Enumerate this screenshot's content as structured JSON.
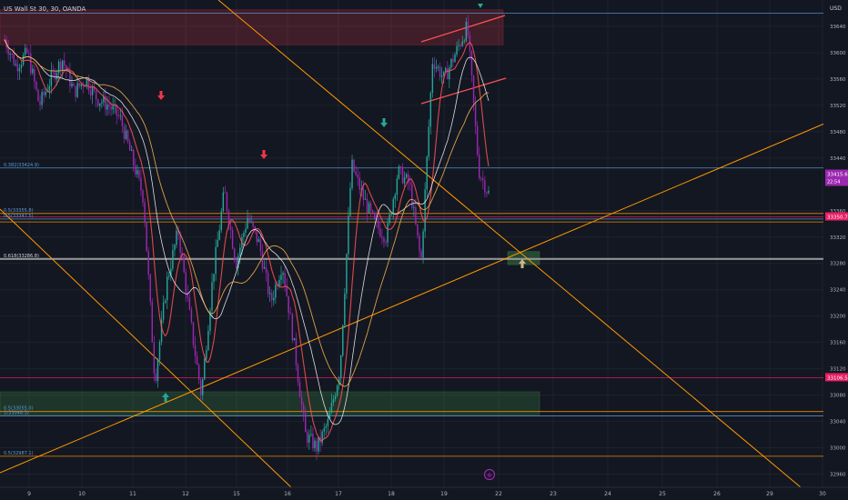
{
  "header": {
    "symbol_label": "US Wall St 30, 30, OANDA"
  },
  "price_scale": {
    "currency": "USD",
    "ticks": [
      33640,
      33600,
      33560,
      33520,
      33480,
      33440,
      33360,
      33320,
      33280,
      33240,
      33200,
      33160,
      33120,
      33080,
      33040,
      33000,
      32960
    ],
    "badges": [
      {
        "label": "33415.6",
        "sub": "22:54",
        "value": 33415.6,
        "color": "#9c27b0"
      },
      {
        "label": "33350.7",
        "value": 33350.7,
        "color": "#e91e63"
      },
      {
        "label": "33106.5",
        "value": 33106.5,
        "color": "#e91e63"
      }
    ]
  },
  "time_axis": {
    "labels": [
      "9",
      "10",
      "11",
      "12",
      "15",
      "16",
      "17",
      "18",
      "19",
      "22",
      "23",
      "24",
      "25",
      "26",
      "29",
      "30"
    ]
  },
  "fib_labels": [
    {
      "text": "0.382(33424.9)",
      "value": 33424.9
    },
    {
      "text": "0.5(33355.8)",
      "value": 33355.8
    },
    {
      "text": "0.5(33347.5)",
      "value": 33347.5
    },
    {
      "text": "0.618(33286.8)",
      "value": 33286.8
    },
    {
      "text": "0.5(33055.0)",
      "value": 33055.0
    },
    {
      "text": "1(33048.3)",
      "value": 33048.3
    },
    {
      "text": "0.5(32987.1)",
      "value": 32987.1
    }
  ],
  "event_marker": {
    "glyph": "⊕"
  },
  "chart_data": {
    "type": "candlestick",
    "interval": "30m",
    "ylim": [
      32940,
      33680
    ],
    "x": [
      "9",
      "10",
      "11",
      "12",
      "15",
      "16",
      "17",
      "18",
      "19",
      "22"
    ],
    "close_path": [
      [
        33620,
        33580,
        33600,
        33520,
        33560,
        33590,
        33540,
        33560,
        33530,
        33520
      ],
      [
        33500,
        33440,
        33380,
        33100,
        33250,
        33330,
        33200,
        33080,
        33260,
        33390
      ],
      [
        33280,
        33350,
        33310,
        33220,
        33280,
        33160,
        33020,
        33000,
        33040,
        33120
      ],
      [
        33430,
        33380,
        33340,
        33320,
        33420,
        33400,
        33280,
        33590,
        33560,
        33600
      ],
      [
        33640,
        33420,
        33380
      ]
    ],
    "last_price": 33415.6,
    "zones": [
      {
        "name": "supply",
        "from": 33612,
        "to": 33665,
        "color": "#f2364533"
      },
      {
        "name": "demand",
        "from": 33050,
        "to": 33085,
        "color": "#4caf5033"
      },
      {
        "name": "retest",
        "from": 33278,
        "to": 33298,
        "color": "#4caf5055"
      }
    ],
    "arrows": [
      {
        "dir": "up",
        "color": "#26a69a"
      },
      {
        "dir": "down",
        "color": "#f23645"
      },
      {
        "dir": "down",
        "color": "#f23645"
      },
      {
        "dir": "down",
        "color": "#26a69a"
      },
      {
        "dir": "up",
        "color": "#d1b38a"
      }
    ],
    "colors": {
      "up": "#26a69a",
      "down": "#9c27b0",
      "ma1": "#ff5252",
      "ma2": "#ffffff",
      "ma3": "#ffb74d",
      "trend": "#ff9800",
      "fib_blue": "#5b9bd5"
    }
  }
}
